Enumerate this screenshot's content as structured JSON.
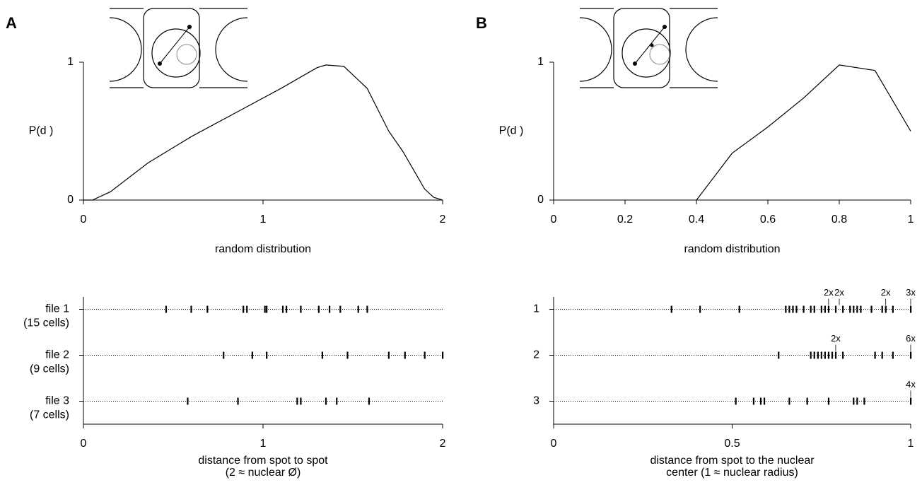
{
  "chart_data": [
    {
      "type": "line",
      "panel": "A",
      "y_label": "P(d )",
      "x_label": [
        "random distribution"
      ],
      "x": [
        0,
        0.05,
        0.15,
        0.36,
        0.6,
        0.9,
        1.1,
        1.3,
        1.35,
        1.45,
        1.58,
        1.7,
        1.78,
        1.9,
        1.95,
        2
      ],
      "series": [
        {
          "color": "#000000",
          "values": [
            0,
            0,
            0.06,
            0.27,
            0.46,
            0.67,
            0.81,
            0.96,
            0.98,
            0.97,
            0.81,
            0.5,
            0.35,
            0.08,
            0.02,
            0
          ]
        }
      ],
      "xlim": [
        0,
        2
      ],
      "xticks": [
        0,
        1,
        2
      ],
      "ylim": [
        0,
        1
      ],
      "yticks": [
        0,
        1
      ]
    },
    {
      "type": "line",
      "panel": "B",
      "y_label": "P(d )",
      "x_label": [
        "random distribution"
      ],
      "x": [
        0.4,
        0.5,
        0.6,
        0.7,
        0.8,
        0.9,
        1
      ],
      "series": [
        {
          "color": "#000000",
          "values": [
            0,
            0.34,
            0.53,
            0.74,
            0.98,
            0.94,
            0.5
          ]
        }
      ],
      "xlim": [
        0,
        1
      ],
      "xticks": [
        0,
        0.2,
        0.4,
        0.6,
        0.8,
        1
      ],
      "ylim": [
        0,
        1
      ],
      "yticks": [
        0,
        1
      ]
    },
    {
      "type": "strip",
      "x_label": [
        "distance from spot to spot",
        "(2 ≈ nuclear Ø)"
      ],
      "categories": [
        "file 1",
        "file 2",
        "file 3"
      ],
      "category_notes": [
        "(15 cells)",
        "(9 cells)",
        "(7 cells)"
      ],
      "series": [
        {
          "color": "#000000",
          "values": [
            0.46,
            0.6,
            0.69,
            0.89,
            0.91,
            1.01,
            1.02,
            1.11,
            1.13,
            1.21,
            1.31,
            1.37,
            1.43,
            1.53,
            1.58
          ]
        },
        {
          "color": "#000000",
          "values": [
            0.78,
            0.94,
            1.02,
            1.33,
            1.47,
            1.7,
            1.79,
            1.9,
            2
          ]
        },
        {
          "color": "#000000",
          "values": [
            0.58,
            0.86,
            1.19,
            1.21,
            1.35,
            1.41,
            1.59
          ]
        }
      ],
      "xlim": [
        0,
        2
      ],
      "xticks": [
        0,
        1,
        2
      ]
    },
    {
      "type": "strip",
      "x_label": [
        "distance from spot to the nuclear",
        "center (1 ≈ nuclear radius)"
      ],
      "categories": [
        "1",
        "2",
        "3"
      ],
      "series": [
        {
          "color": "#000000",
          "values": [
            0.33,
            0.41,
            0.52,
            0.65,
            0.66,
            0.67,
            0.68,
            0.7,
            0.72,
            0.73,
            0.75,
            0.76,
            0.77,
            0.79,
            0.81,
            0.83,
            0.84,
            0.85,
            0.86,
            0.89,
            0.92,
            0.93,
            0.95,
            1
          ],
          "annotations": [
            {
              "value": 0.77,
              "label": "2x"
            },
            {
              "value": 0.8,
              "label": "2x"
            },
            {
              "value": 0.93,
              "label": "2x"
            },
            {
              "value": 1,
              "label": "3x"
            }
          ]
        },
        {
          "color": "#000000",
          "values": [
            0.63,
            0.72,
            0.73,
            0.74,
            0.75,
            0.76,
            0.77,
            0.78,
            0.79,
            0.81,
            0.9,
            0.92,
            0.95,
            1
          ],
          "annotations": [
            {
              "value": 0.79,
              "label": "2x"
            },
            {
              "value": 1,
              "label": "6x"
            }
          ]
        },
        {
          "color": "#000000",
          "values": [
            0.51,
            0.56,
            0.58,
            0.59,
            0.66,
            0.71,
            0.77,
            0.84,
            0.85,
            0.87,
            1
          ],
          "annotations": [
            {
              "value": 1,
              "label": "4x"
            }
          ]
        }
      ],
      "xlim": [
        0,
        1
      ],
      "xticks": [
        0,
        0.5,
        1
      ]
    }
  ]
}
